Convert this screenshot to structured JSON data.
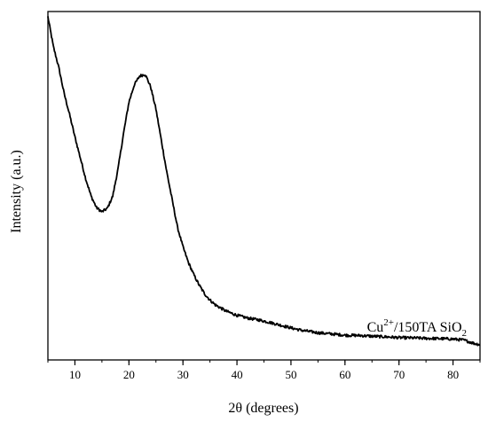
{
  "chart_data": {
    "type": "line",
    "title": "",
    "xlabel": "2θ (degrees)",
    "ylabel": "Intensity (a.u.)",
    "xlim": [
      5,
      85
    ],
    "x_ticks": [
      10,
      20,
      30,
      40,
      50,
      60,
      70,
      80
    ],
    "y_ticks_labeled": false,
    "grid": false,
    "legend": {
      "placement": "bottom-right",
      "base": "Cu",
      "superscript": "2+",
      "middle": "/150TA SiO",
      "subscript": "2"
    },
    "y_units": "relative intensity (0 = bottom of plot area, 1 = top)",
    "series": [
      {
        "name": "Cu2+/150TA SiO2",
        "color": "#000000",
        "x": [
          5,
          6,
          7,
          8,
          9,
          10,
          11,
          12,
          13,
          14,
          15,
          16,
          17,
          18,
          19,
          20,
          21,
          22,
          23,
          24,
          25,
          26,
          27,
          28,
          29,
          30,
          31,
          32,
          33,
          34,
          35,
          36,
          38,
          40,
          42,
          44,
          46,
          48,
          50,
          52,
          55,
          58,
          60,
          63,
          65,
          68,
          70,
          73,
          75,
          78,
          80,
          82,
          83,
          84,
          85
        ],
        "y": [
          0.985,
          0.9,
          0.84,
          0.765,
          0.705,
          0.64,
          0.58,
          0.52,
          0.47,
          0.437,
          0.425,
          0.435,
          0.47,
          0.55,
          0.65,
          0.74,
          0.79,
          0.815,
          0.82,
          0.785,
          0.72,
          0.63,
          0.54,
          0.46,
          0.38,
          0.325,
          0.28,
          0.245,
          0.215,
          0.19,
          0.172,
          0.158,
          0.14,
          0.128,
          0.12,
          0.115,
          0.108,
          0.1,
          0.092,
          0.085,
          0.078,
          0.074,
          0.071,
          0.07,
          0.068,
          0.066,
          0.064,
          0.063,
          0.062,
          0.061,
          0.06,
          0.057,
          0.052,
          0.047,
          0.044
        ]
      }
    ]
  }
}
